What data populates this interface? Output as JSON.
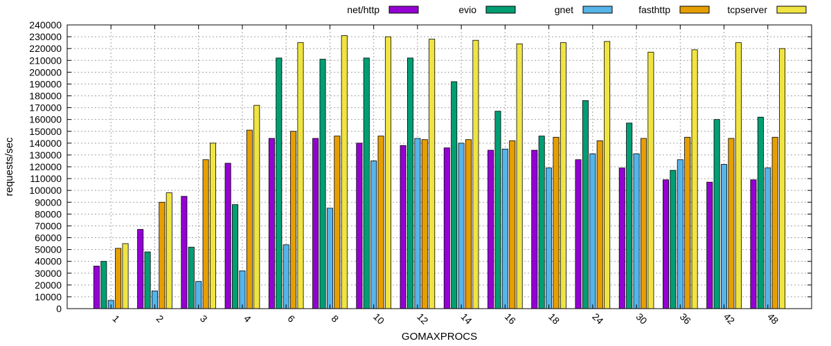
{
  "chart_data": {
    "type": "bar",
    "title": "",
    "xlabel": "GOMAXPROCS",
    "ylabel": "requests/sec",
    "ylim": [
      0,
      240000
    ],
    "ytick_step": 10000,
    "grid": true,
    "legend_position": "top",
    "categories": [
      "1",
      "2",
      "3",
      "4",
      "6",
      "8",
      "10",
      "12",
      "14",
      "16",
      "18",
      "24",
      "30",
      "36",
      "42",
      "48"
    ],
    "series": [
      {
        "name": "net/http",
        "color": "#9400d3",
        "values": [
          36000,
          67000,
          95000,
          123000,
          144000,
          144000,
          140000,
          138000,
          136000,
          134000,
          134000,
          126000,
          119000,
          109000,
          107000,
          109000
        ]
      },
      {
        "name": "evio",
        "color": "#009e73",
        "values": [
          40000,
          48000,
          52000,
          88000,
          212000,
          211000,
          212000,
          212000,
          192000,
          167000,
          146000,
          176000,
          157000,
          117000,
          160000,
          162000
        ]
      },
      {
        "name": "gnet",
        "color": "#56b4e9",
        "values": [
          7000,
          15000,
          23000,
          32000,
          54000,
          85000,
          125000,
          144000,
          140000,
          135000,
          119000,
          131000,
          131000,
          126000,
          122000,
          119000
        ]
      },
      {
        "name": "fasthttp",
        "color": "#e69f00",
        "values": [
          51000,
          90000,
          126000,
          151000,
          150000,
          146000,
          146000,
          143000,
          143000,
          142000,
          145000,
          142000,
          144000,
          145000,
          144000,
          145000
        ]
      },
      {
        "name": "tcpserver",
        "color": "#f0e442",
        "values": [
          55000,
          98000,
          140000,
          172000,
          225000,
          231000,
          230000,
          228000,
          227000,
          224000,
          225000,
          226000,
          217000,
          219000,
          225000,
          220000
        ]
      }
    ]
  }
}
